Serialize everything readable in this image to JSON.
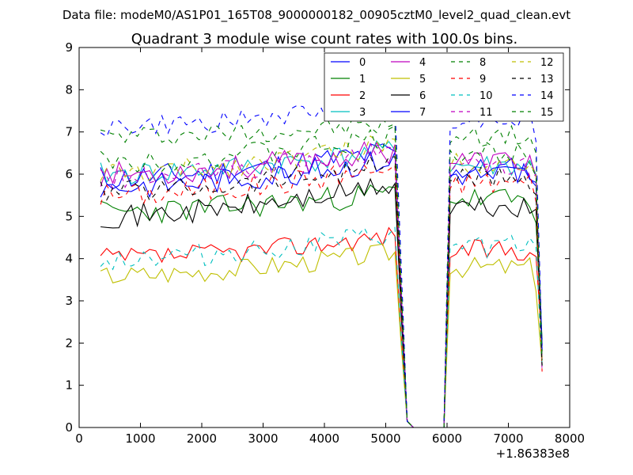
{
  "suptitle": "Data file: modeM0/AS1P01_165T08_9000000182_00905cztM0_level2_quad_clean.evt",
  "chart_data": {
    "type": "line",
    "title": "Quadrant 3 module wise count rates with 100.0s bins.",
    "xlabel": "",
    "ylabel": "",
    "x_offset_label": "+1.86383e8",
    "xlim": [
      0,
      8000
    ],
    "ylim": [
      0,
      9
    ],
    "xticks": [
      0,
      1000,
      2000,
      3000,
      4000,
      5000,
      6000,
      7000,
      8000
    ],
    "yticks": [
      0,
      1,
      2,
      3,
      4,
      5,
      6,
      7,
      8,
      9
    ],
    "legend_location": "top-right",
    "x": {
      "segment1": {
        "start": 350,
        "step": 100,
        "count": 51
      },
      "gap": [
        5450,
        5950
      ],
      "segment2": {
        "start": 6050,
        "step": 100,
        "count": 16
      }
    },
    "series": [
      {
        "name": "0",
        "color": "#0000ff",
        "dash": "solid",
        "base": 5.9,
        "mid": 6.6,
        "end": 6.1,
        "noise": 0.32,
        "seed": 11
      },
      {
        "name": "1",
        "color": "#008000",
        "dash": "solid",
        "base": 5.1,
        "mid": 5.6,
        "end": 5.4,
        "noise": 0.3,
        "seed": 23
      },
      {
        "name": "2",
        "color": "#ff0000",
        "dash": "solid",
        "base": 4.0,
        "mid": 4.6,
        "end": 4.2,
        "noise": 0.25,
        "seed": 37
      },
      {
        "name": "3",
        "color": "#00bfbf",
        "dash": "solid",
        "base": 6.0,
        "mid": 6.6,
        "end": 6.2,
        "noise": 0.28,
        "seed": 41
      },
      {
        "name": "4",
        "color": "#bf00bf",
        "dash": "solid",
        "base": 6.0,
        "mid": 6.6,
        "end": 6.3,
        "noise": 0.3,
        "seed": 53
      },
      {
        "name": "5",
        "color": "#bfbf00",
        "dash": "solid",
        "base": 3.6,
        "mid": 4.2,
        "end": 3.8,
        "noise": 0.25,
        "seed": 67
      },
      {
        "name": "6",
        "color": "#000000",
        "dash": "solid",
        "base": 5.0,
        "mid": 5.8,
        "end": 5.2,
        "noise": 0.28,
        "seed": 71
      },
      {
        "name": "7",
        "color": "#0000ff",
        "dash": "solid",
        "base": 5.7,
        "mid": 6.4,
        "end": 6.0,
        "noise": 0.3,
        "seed": 83
      },
      {
        "name": "8",
        "color": "#008000",
        "dash": "dashed",
        "base": 6.9,
        "mid": 7.2,
        "end": 6.9,
        "noise": 0.25,
        "seed": 97
      },
      {
        "name": "9",
        "color": "#ff0000",
        "dash": "dashed",
        "base": 5.5,
        "mid": 6.2,
        "end": 5.8,
        "noise": 0.3,
        "seed": 101
      },
      {
        "name": "10",
        "color": "#00bfbf",
        "dash": "dashed",
        "base": 4.0,
        "mid": 4.6,
        "end": 4.3,
        "noise": 0.28,
        "seed": 113
      },
      {
        "name": "11",
        "color": "#bf00bf",
        "dash": "dashed",
        "base": 5.9,
        "mid": 6.6,
        "end": 6.2,
        "noise": 0.28,
        "seed": 127
      },
      {
        "name": "12",
        "color": "#bfbf00",
        "dash": "dashed",
        "base": 6.0,
        "mid": 6.8,
        "end": 6.3,
        "noise": 0.28,
        "seed": 131
      },
      {
        "name": "13",
        "color": "#000000",
        "dash": "dashed",
        "base": 5.6,
        "mid": 6.3,
        "end": 5.9,
        "noise": 0.28,
        "seed": 139
      },
      {
        "name": "14",
        "color": "#0000ff",
        "dash": "dashed",
        "base": 7.1,
        "mid": 7.7,
        "end": 7.3,
        "noise": 0.25,
        "seed": 149
      },
      {
        "name": "15",
        "color": "#008000",
        "dash": "dashed",
        "base": 6.3,
        "mid": 6.9,
        "end": 6.5,
        "noise": 0.28,
        "seed": 151
      }
    ]
  }
}
